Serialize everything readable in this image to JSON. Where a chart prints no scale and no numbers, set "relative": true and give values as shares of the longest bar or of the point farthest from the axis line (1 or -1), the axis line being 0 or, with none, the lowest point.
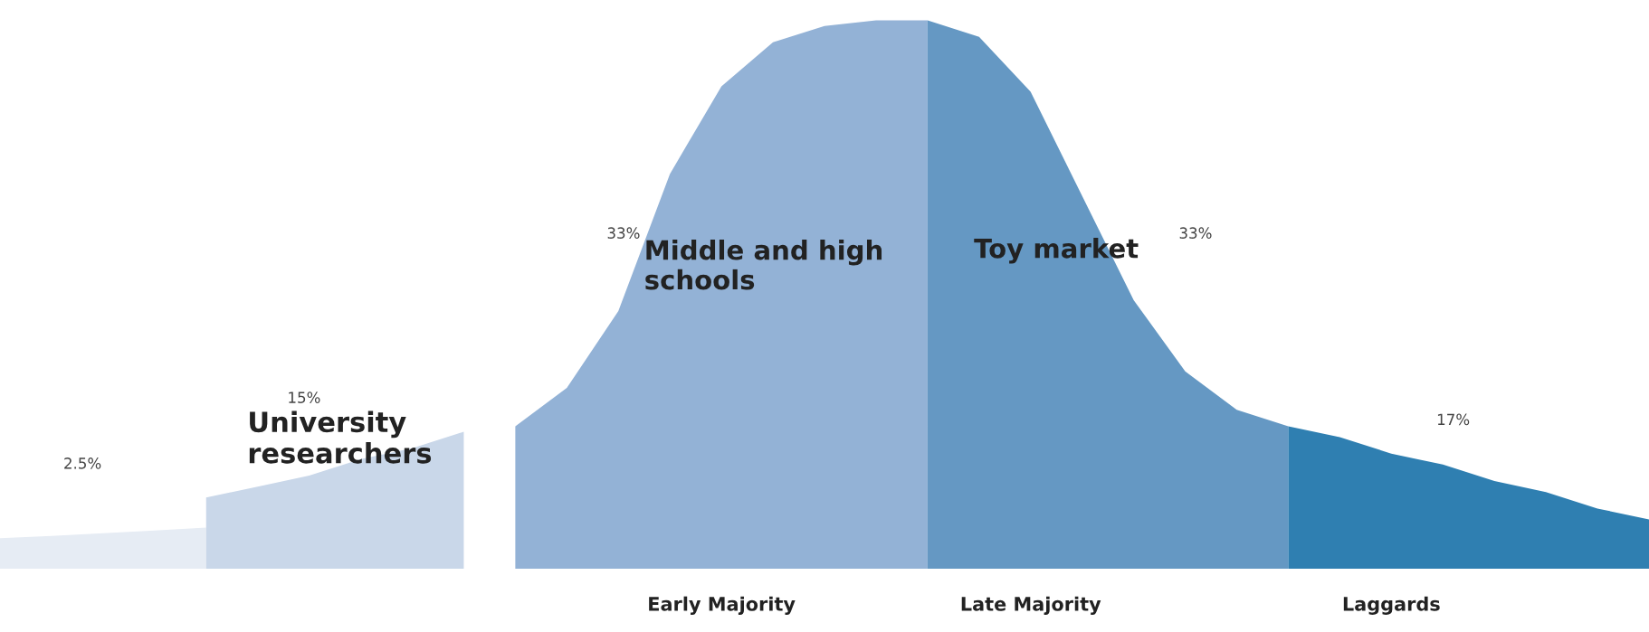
{
  "chart_data": {
    "type": "area",
    "relative": true,
    "categories": [
      null,
      null,
      null,
      null,
      null,
      null,
      null,
      null,
      null,
      null,
      null,
      null,
      null,
      null,
      "Early Majority",
      null,
      null,
      null,
      null,
      null,
      "Late Majority",
      null,
      null,
      null,
      null,
      null,
      null,
      "Laggards",
      null,
      null,
      null,
      null,
      null
    ],
    "series": [
      {
        "color": "#e6ecf4",
        "values": [
          0.056,
          0.06,
          0.065,
          0.07,
          0.075,
          null,
          null,
          null,
          null,
          null,
          null,
          null,
          null,
          null,
          null,
          null,
          null,
          null,
          null,
          null,
          null,
          null,
          null,
          null,
          null,
          null,
          null,
          null,
          null,
          null,
          null,
          null,
          null
        ]
      },
      {
        "color": "#c9d7e9",
        "values": [
          null,
          null,
          null,
          null,
          0.13,
          0.15,
          0.17,
          0.2,
          0.22,
          0.25,
          null,
          null,
          null,
          null,
          null,
          null,
          null,
          null,
          null,
          null,
          null,
          null,
          null,
          null,
          null,
          null,
          null,
          null,
          null,
          null,
          null,
          null,
          null
        ]
      },
      {
        "color": "#93b2d6",
        "values": [
          null,
          null,
          null,
          null,
          null,
          null,
          null,
          null,
          null,
          null,
          0.26,
          0.33,
          0.47,
          0.72,
          0.88,
          0.96,
          0.99,
          1.0,
          1.0,
          null,
          null,
          null,
          null,
          null,
          null,
          null,
          null,
          null,
          null,
          null,
          null,
          null,
          null
        ]
      },
      {
        "color": "#6598c3",
        "values": [
          null,
          null,
          null,
          null,
          null,
          null,
          null,
          null,
          null,
          null,
          null,
          null,
          null,
          null,
          null,
          null,
          null,
          null,
          1.0,
          0.97,
          0.87,
          0.68,
          0.49,
          0.36,
          0.29,
          0.26,
          null,
          null,
          null,
          null,
          null,
          null,
          null
        ]
      },
      {
        "color": "#2f7fb1",
        "values": [
          null,
          null,
          null,
          null,
          null,
          null,
          null,
          null,
          null,
          null,
          null,
          null,
          null,
          null,
          null,
          null,
          null,
          null,
          null,
          null,
          null,
          null,
          null,
          null,
          null,
          0.26,
          0.24,
          0.21,
          0.19,
          0.16,
          0.14,
          0.11,
          0.09
        ]
      }
    ],
    "annotations": [
      "2.5%",
      "15%",
      "University\nresearchers",
      "33%",
      "Middle and high\nschools",
      "Toy market",
      "33%",
      "17%"
    ]
  }
}
